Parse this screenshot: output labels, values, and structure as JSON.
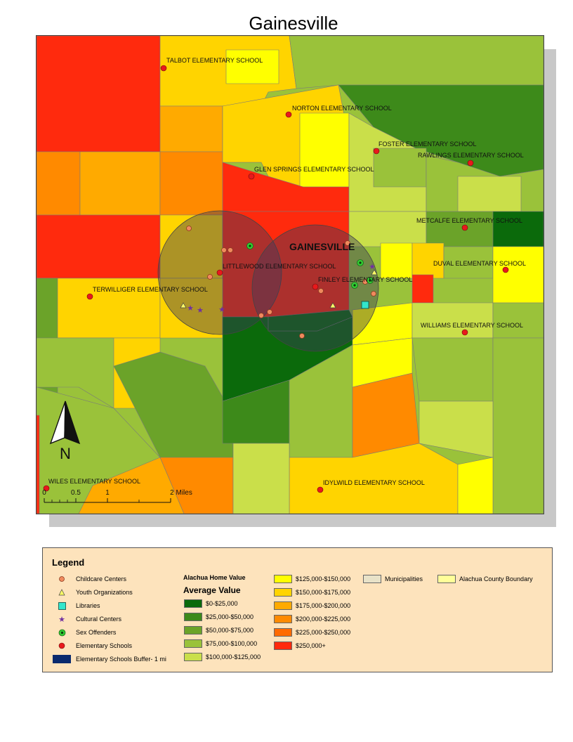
{
  "title": "Gainesville",
  "city_label": "GAINESVILLE",
  "schools": [
    {
      "label": "TALBOT ELEMENTARY SCHOOL"
    },
    {
      "label": "NORTON ELEMENTARY SCHOOL"
    },
    {
      "label": "FOSTER ELEMENTARY SCHOOL"
    },
    {
      "label": "RAWLINGS ELEMENTARY SCHOOL"
    },
    {
      "label": "GLEN SPRINGS ELEMENTARY SCHOOL"
    },
    {
      "label": "METCALFE ELEMENTARY SCHOOL"
    },
    {
      "label": "LITTLEWOOD ELEMENTARY SCHOOL"
    },
    {
      "label": "DUVAL ELEMENTARY SCHOOL"
    },
    {
      "label": "FINLEY ELEMENTARY SCHOOL"
    },
    {
      "label": "TERWILLIGER ELEMENTARY SCHOOL"
    },
    {
      "label": "WILLIAMS ELEMENTARY SCHOOL"
    },
    {
      "label": "WILES ELEMENTARY SCHOOL"
    },
    {
      "label": "IDYLWILD ELEMENTARY SCHOOL"
    }
  ],
  "north_arrow": "N",
  "scale_bar": {
    "labels": [
      "0",
      "0.5",
      "1",
      "2 Miles"
    ]
  },
  "legend": {
    "title": "Legend",
    "point_items": [
      {
        "label": "Childcare Centers",
        "icon": "childcare-icon",
        "color": "#f08a5d"
      },
      {
        "label": "Youth Organizations",
        "icon": "triangle-icon",
        "color": "#ffff66"
      },
      {
        "label": "Libraries",
        "icon": "square-icon",
        "color": "#33e6cc"
      },
      {
        "label": "Cultural Centers",
        "icon": "star-icon",
        "color": "#7030a0"
      },
      {
        "label": "Sex Offenders",
        "icon": "offender-icon",
        "color": "#33cc33"
      },
      {
        "label": "Elementary Schools",
        "icon": "school-dot-icon",
        "color": "#e8191c"
      },
      {
        "label": "Elementary Schools Buffer- 1 mi",
        "icon": "buffer-swatch",
        "color": "#0a2a6e"
      }
    ],
    "home_value_heading": "Alachua Home Value",
    "average_value_heading": "Average Value",
    "value_classes_col1": [
      {
        "label": "$0-$25,000",
        "color": "#0b6a0b"
      },
      {
        "label": "$25,000-$50,000",
        "color": "#3d8a1a"
      },
      {
        "label": "$50,000-$75,000",
        "color": "#6ba329"
      },
      {
        "label": "$75,000-$100,000",
        "color": "#9ac23a"
      },
      {
        "label": "$100,000-$125,000",
        "color": "#cadf4a"
      }
    ],
    "value_classes_col2": [
      {
        "label": "$125,000-$150,000",
        "color": "#ffff00"
      },
      {
        "label": "$150,000-$175,000",
        "color": "#ffd400"
      },
      {
        "label": "$175,000-$200,000",
        "color": "#ffaa00"
      },
      {
        "label": "$200,000-$225,000",
        "color": "#ff8a00"
      },
      {
        "label": "$225,000-$250,000",
        "color": "#ff6a00"
      },
      {
        "label": "$250,000+",
        "color": "#ff2a0d"
      }
    ],
    "other_items": [
      {
        "label": "Municipalities",
        "color": "#e8e2c8"
      },
      {
        "label": "Alachua County Boundary",
        "color": "#ffff99"
      }
    ]
  }
}
